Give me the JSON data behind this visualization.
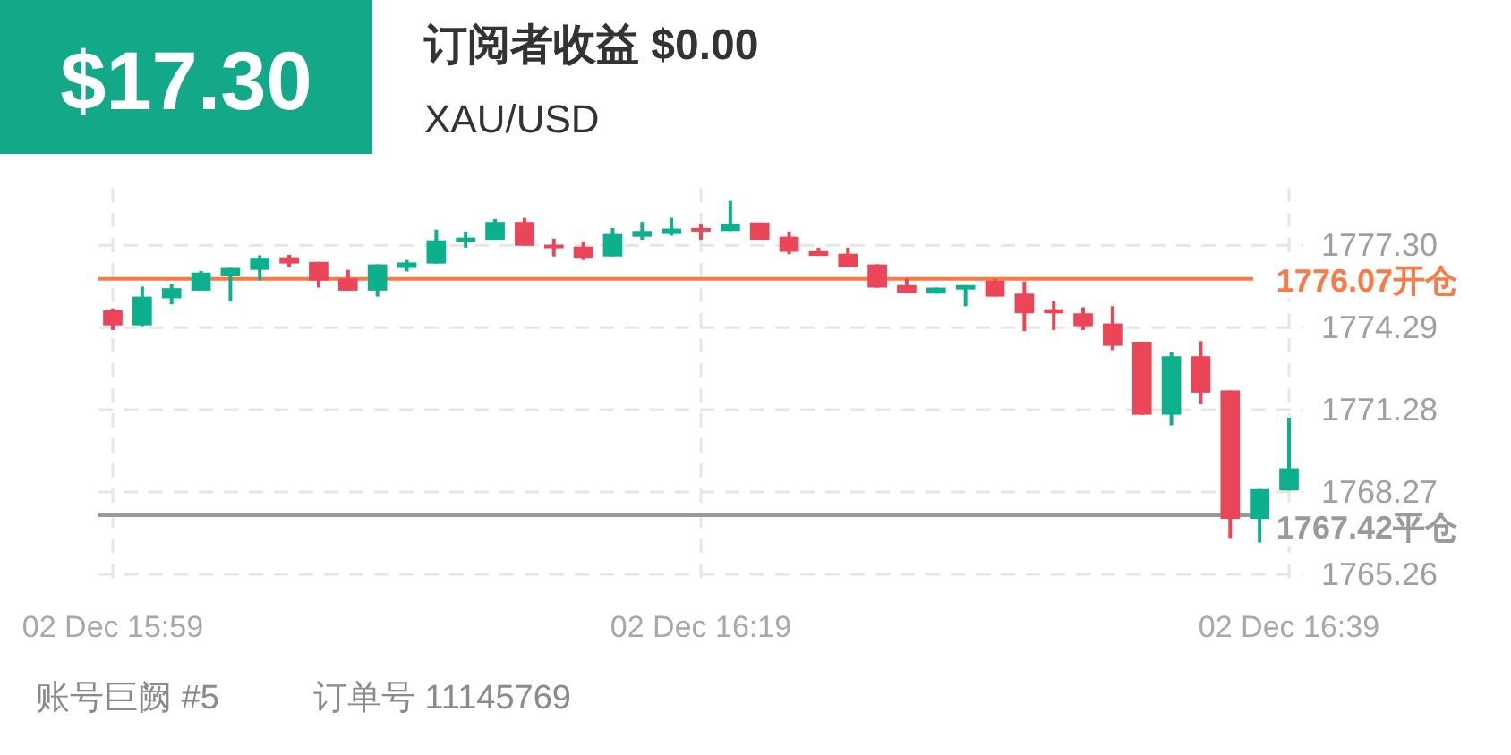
{
  "chart_data": {
    "type": "candlestick",
    "title": "订阅者收益 $0.00",
    "subtitle": "XAU/USD",
    "annotations": [
      "$17.30",
      "账号巨阙 #5",
      "订单号 11145769"
    ],
    "categories": [
      "02 Dec  15:59",
      null,
      null,
      null,
      null,
      null,
      null,
      null,
      null,
      null,
      null,
      null,
      null,
      null,
      null,
      null,
      null,
      null,
      null,
      null,
      "02 Dec  16:19",
      null,
      null,
      null,
      null,
      null,
      null,
      null,
      null,
      null,
      null,
      null,
      null,
      null,
      null,
      null,
      null,
      null,
      null,
      null,
      "02 Dec  16:39"
    ],
    "ohlc": [
      [
        1774.92,
        1774.99,
        1774.2,
        1774.37
      ],
      [
        1774.37,
        1775.79,
        1774.34,
        1775.42
      ],
      [
        1775.36,
        1775.88,
        1775.14,
        1775.73
      ],
      [
        1775.64,
        1776.36,
        1775.64,
        1776.3
      ],
      [
        1776.19,
        1776.47,
        1775.25,
        1776.47
      ],
      [
        1776.4,
        1776.93,
        1776.01,
        1776.84
      ],
      [
        1776.86,
        1776.95,
        1776.5,
        1776.63
      ],
      [
        1776.69,
        1776.69,
        1775.75,
        1776.01
      ],
      [
        1776.08,
        1776.4,
        1775.64,
        1775.64
      ],
      [
        1775.64,
        1776.6,
        1775.42,
        1776.6
      ],
      [
        1776.47,
        1776.76,
        1776.34,
        1776.67
      ],
      [
        1776.63,
        1777.87,
        1776.63,
        1777.48
      ],
      [
        1777.43,
        1777.8,
        1777.21,
        1777.58
      ],
      [
        1777.5,
        1778.26,
        1777.5,
        1778.15
      ],
      [
        1778.15,
        1778.3,
        1777.28,
        1777.28
      ],
      [
        1777.32,
        1777.54,
        1776.89,
        1777.19
      ],
      [
        1777.25,
        1777.43,
        1776.76,
        1776.84
      ],
      [
        1776.89,
        1777.93,
        1776.89,
        1777.71
      ],
      [
        1777.61,
        1778.15,
        1777.5,
        1777.82
      ],
      [
        1777.71,
        1778.3,
        1777.65,
        1777.91
      ],
      [
        1777.93,
        1778.09,
        1777.5,
        1777.8
      ],
      [
        1777.82,
        1778.92,
        1777.82,
        1778.09
      ],
      [
        1778.13,
        1778.13,
        1777.5,
        1777.5
      ],
      [
        1777.61,
        1777.8,
        1776.97,
        1777.06
      ],
      [
        1777.08,
        1777.21,
        1776.91,
        1776.91
      ],
      [
        1776.99,
        1777.21,
        1776.51,
        1776.51
      ],
      [
        1776.6,
        1776.6,
        1775.75,
        1775.75
      ],
      [
        1775.84,
        1776.08,
        1775.55,
        1775.55
      ],
      [
        1775.53,
        1775.75,
        1775.53,
        1775.75
      ],
      [
        1775.68,
        1775.84,
        1775.07,
        1775.84
      ],
      [
        1776.01,
        1776.06,
        1775.42,
        1775.42
      ],
      [
        1775.53,
        1775.97,
        1774.16,
        1774.81
      ],
      [
        1774.96,
        1775.25,
        1774.2,
        1774.81
      ],
      [
        1774.81,
        1775.03,
        1774.2,
        1774.34
      ],
      [
        1774.44,
        1775.07,
        1773.46,
        1773.62
      ],
      [
        1773.77,
        1773.77,
        1771.1,
        1771.1
      ],
      [
        1771.1,
        1773.39,
        1770.71,
        1773.24
      ],
      [
        1773.24,
        1773.79,
        1771.48,
        1771.91
      ],
      [
        1771.99,
        1771.99,
        1766.59,
        1767.29
      ],
      [
        1767.29,
        1768.38,
        1766.42,
        1768.38
      ],
      [
        1768.33,
        1770.99,
        1768.33,
        1769.14
      ]
    ],
    "colors": [
      "#eb4657",
      "#0cb08d",
      "#0cb08d",
      "#0cb08d",
      "#0cb08d",
      "#0cb08d",
      "#eb4657",
      "#eb4657",
      "#eb4657",
      "#0cb08d",
      "#0cb08d",
      "#0cb08d",
      "#0cb08d",
      "#0cb08d",
      "#eb4657",
      "#eb4657",
      "#eb4657",
      "#0cb08d",
      "#0cb08d",
      "#0cb08d",
      "#eb4657",
      "#0cb08d",
      "#eb4657",
      "#eb4657",
      "#eb4657",
      "#eb4657",
      "#eb4657",
      "#eb4657",
      "#0cb08d",
      "#0cb08d",
      "#eb4657",
      "#eb4657",
      "#eb4657",
      "#eb4657",
      "#eb4657",
      "#eb4657",
      "#0cb08d",
      "#eb4657",
      "#eb4657",
      "#0cb08d",
      "#0cb08d"
    ],
    "ylim": [
      1765.0,
      1779.4
    ],
    "yticks": [
      {
        "value": 1765.26,
        "label": "1765.26"
      },
      {
        "value": 1768.27,
        "label": "1768.27"
      },
      {
        "value": 1771.28,
        "label": "1771.28"
      },
      {
        "value": 1774.29,
        "label": "1774.29"
      },
      {
        "value": 1777.3,
        "label": "1777.30"
      }
    ],
    "ref_lines": [
      {
        "axis": "y",
        "value": 1776.07,
        "label": "1776.07开仓",
        "color": "#fa7a45"
      },
      {
        "axis": "y",
        "value": 1767.42,
        "label": "1767.42平仓",
        "color": "#9a9a9a"
      }
    ],
    "grid": true
  }
}
